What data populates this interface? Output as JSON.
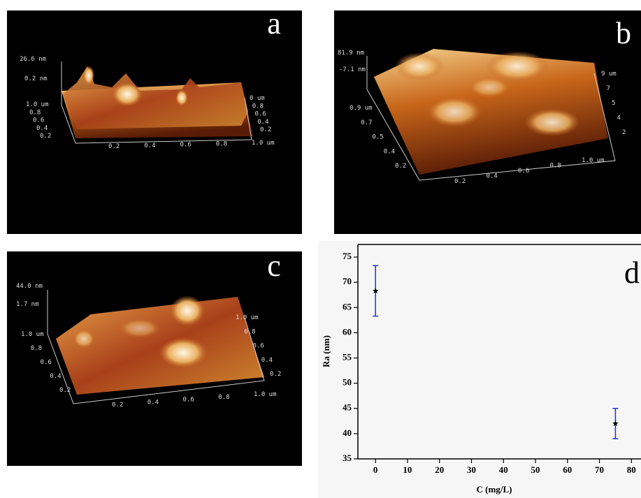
{
  "afm_panels": [
    {
      "letter": "a",
      "z_labels": [
        "26.6 nm",
        "0.2 nm"
      ],
      "left_axis": [
        "1.0 um",
        "0.8",
        "0.6",
        "0.4",
        "0.2"
      ],
      "bottom_axis": [
        "0.2",
        "0.4",
        "0.6",
        "0.8",
        "1.0 um"
      ],
      "right_axis": [
        "0 um",
        "0.8",
        "0.6",
        "0.4",
        "0.2"
      ]
    },
    {
      "letter": "b",
      "z_labels": [
        "81.9 nm",
        "-7.1 nm"
      ],
      "left_axis": [
        "0.9 um",
        "0.7",
        "0.5",
        "0.4",
        "0.2"
      ],
      "bottom_axis": [
        "0.2",
        "0.4",
        "0.6",
        "0.8",
        "1.0 um"
      ],
      "right_axis": [
        "9 um",
        "7",
        "5",
        "4",
        "2"
      ]
    },
    {
      "letter": "c",
      "z_labels": [
        "44.0 nm",
        "1.7 nm"
      ],
      "left_axis": [
        "1.0 um",
        "0.8",
        "0.6",
        "0.4",
        "0.2"
      ],
      "bottom_axis": [
        "0.2",
        "0.4",
        "0.6",
        "0.8",
        "1.0 um"
      ],
      "right_axis": [
        "1.0 um",
        "0.8",
        "0.6",
        "0.4",
        "0.2"
      ]
    }
  ],
  "chart_data": {
    "type": "scatter",
    "panel_letter": "d",
    "x_label": "C (mg/L)",
    "y_label": "Ra (nm)",
    "x": [
      0,
      75
    ],
    "values": [
      68.3,
      42
    ],
    "errors": [
      5,
      3
    ],
    "color": "#000000",
    "error_color": "#2233cc",
    "xlim": [
      -5.5,
      83
    ],
    "xticks": [
      0,
      10,
      20,
      30,
      40,
      50,
      60,
      70,
      80
    ],
    "ylim": [
      35,
      77.5
    ],
    "yticks": [
      35,
      40,
      45,
      50,
      55,
      60,
      65,
      70,
      75
    ]
  }
}
